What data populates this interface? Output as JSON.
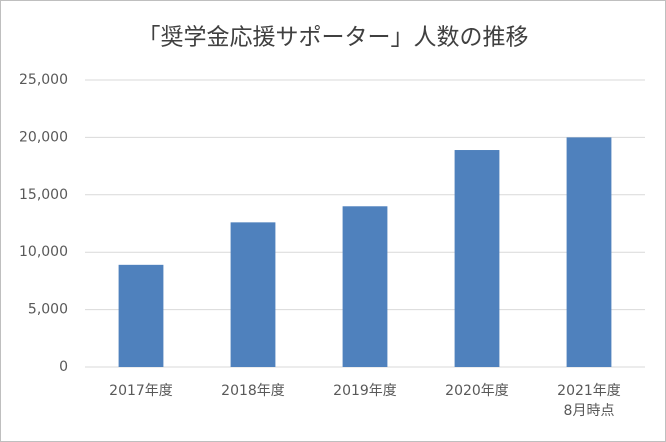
{
  "chart_data": {
    "type": "bar",
    "title": "「奨学金応援サポーター」人数の推移",
    "categories": [
      "2017年度",
      "2018年度",
      "2019年度",
      "2020年度",
      "2021年度\n8月時点"
    ],
    "values": [
      8900,
      12600,
      14000,
      18900,
      20000
    ],
    "color": "#4f81bd",
    "ylim": [
      0,
      25000
    ],
    "yticks": [
      0,
      {
        "value": 5000,
        "label": "5,000"
      },
      {
        "value": 10000,
        "label": "10,000"
      },
      {
        "value": 15000,
        "label": "15,000"
      },
      {
        "value": 20000,
        "label": "20,000"
      },
      {
        "value": 25000,
        "label": "25,000"
      }
    ],
    "grid": true
  }
}
